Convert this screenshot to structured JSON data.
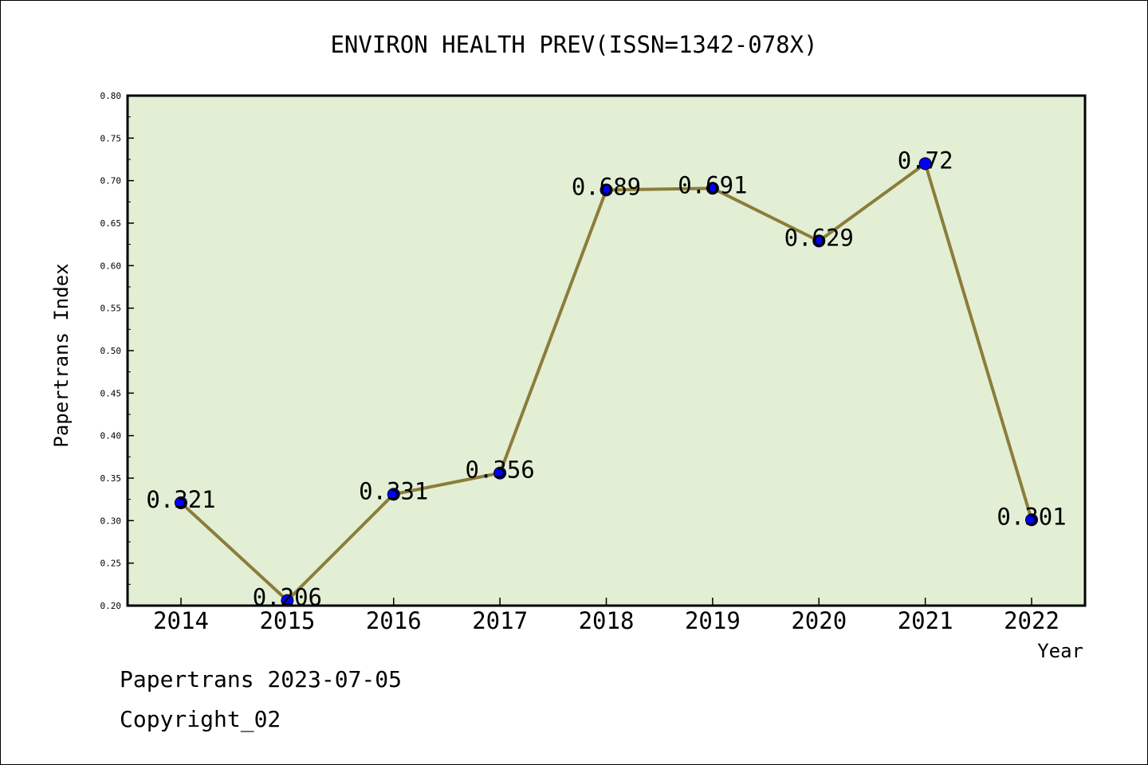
{
  "chart_data": {
    "type": "line",
    "title": "ENVIRON HEALTH PREV(ISSN=1342-078X)",
    "xlabel": "Year",
    "ylabel": "Papertrans Index",
    "categories": [
      "2014",
      "2015",
      "2016",
      "2017",
      "2018",
      "2019",
      "2020",
      "2021",
      "2022"
    ],
    "values": [
      0.321,
      0.206,
      0.331,
      0.356,
      0.689,
      0.691,
      0.629,
      0.72,
      0.301
    ],
    "data_labels": [
      "0.321",
      "0.206",
      "0.331",
      "0.356",
      "0.689",
      "0.691",
      "0.629",
      "0.72",
      "0.301"
    ],
    "ylim": [
      0.2,
      0.8
    ],
    "yticks": [
      "0.20",
      "0.25",
      "0.30",
      "0.35",
      "0.40",
      "0.45",
      "0.50",
      "0.55",
      "0.60",
      "0.65",
      "0.70",
      "0.75",
      "0.80"
    ],
    "grid": false,
    "legend": "none",
    "colors": {
      "plot_background": "#e2efd5",
      "line": "#8b7d3a",
      "marker": "#0000ff"
    }
  },
  "footer": {
    "date_line": "Papertrans 2023-07-05",
    "copyright": "Copyright_02"
  }
}
